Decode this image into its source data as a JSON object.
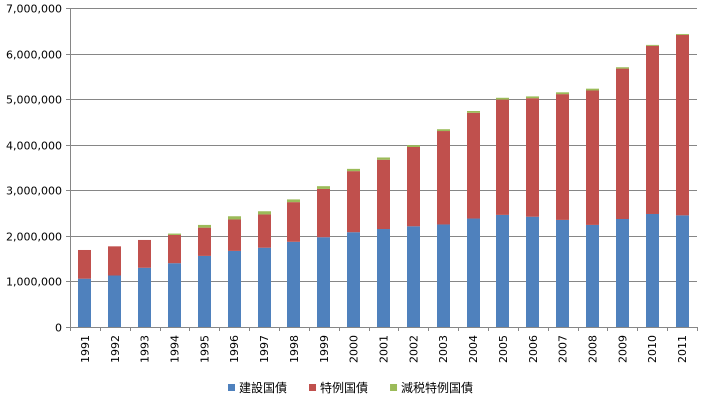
{
  "chart_data": {
    "type": "bar",
    "stacked": true,
    "categories": [
      "1991",
      "1992",
      "1993",
      "1994",
      "1995",
      "1996",
      "1997",
      "1998",
      "1999",
      "2000",
      "2001",
      "2002",
      "2003",
      "2004",
      "2005",
      "2006",
      "2007",
      "2008",
      "2009",
      "2010",
      "2011"
    ],
    "series": [
      {
        "name": "建設国債",
        "color": "#4F81BD",
        "values": [
          1060000,
          1130000,
          1300000,
          1400000,
          1560000,
          1670000,
          1740000,
          1870000,
          1970000,
          2080000,
          2150000,
          2210000,
          2250000,
          2380000,
          2460000,
          2420000,
          2350000,
          2240000,
          2370000,
          2480000,
          2450000
        ]
      },
      {
        "name": "特例国債",
        "color": "#C0504D",
        "values": [
          630000,
          640000,
          610000,
          620000,
          620000,
          690000,
          730000,
          870000,
          1060000,
          1340000,
          1520000,
          1740000,
          2050000,
          2320000,
          2530000,
          2600000,
          2760000,
          2950000,
          3300000,
          3690000,
          3960000
        ]
      },
      {
        "name": "減税特例国債",
        "color": "#9BBB59",
        "values": [
          0,
          0,
          0,
          30000,
          60000,
          70000,
          70000,
          60000,
          60000,
          50000,
          50000,
          40000,
          40000,
          40000,
          40000,
          40000,
          40000,
          40000,
          30000,
          20000,
          20000
        ]
      }
    ],
    "ylim": [
      0,
      7000000
    ],
    "yticks": [
      0,
      1000000,
      2000000,
      3000000,
      4000000,
      5000000,
      6000000,
      7000000
    ],
    "ytick_labels": [
      "0",
      "1,000,000",
      "2,000,000",
      "3,000,000",
      "4,000,000",
      "5,000,000",
      "6,000,000",
      "7,000,000"
    ],
    "grid": true,
    "legend_position": "bottom",
    "title": "",
    "xlabel": "",
    "ylabel": ""
  }
}
